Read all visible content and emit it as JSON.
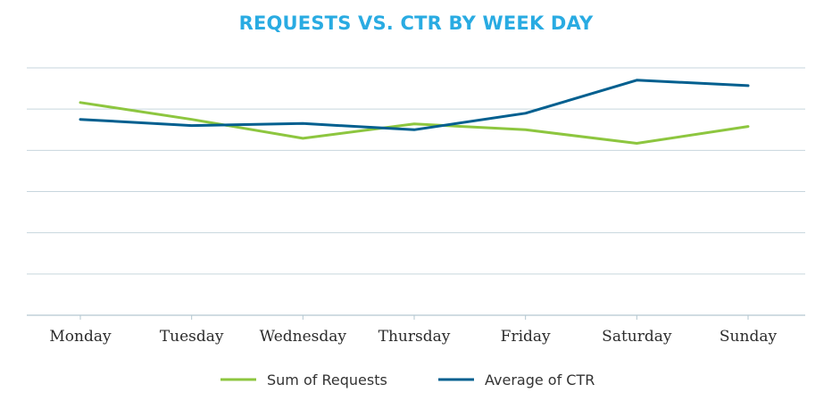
{
  "chart_data": {
    "type": "line",
    "title": "REQUESTS VS. CTR BY WEEK DAY",
    "xlabel": "",
    "ylabel": "",
    "categories": [
      "Monday",
      "Tuesday",
      "Wednesday",
      "Thursday",
      "Friday",
      "Saturday",
      "Sunday"
    ],
    "ylim": [
      0,
      6
    ],
    "grid": true,
    "y_tick_labels_shown": false,
    "legend_position": "bottom",
    "series": [
      {
        "name": "Sum of Requests",
        "color": "#8dc63f",
        "values": [
          5.16,
          4.75,
          4.29,
          4.64,
          4.5,
          4.17,
          4.58
        ]
      },
      {
        "name": "Average of CTR",
        "color": "#005f8f",
        "values": [
          4.75,
          4.6,
          4.65,
          4.5,
          4.9,
          5.7,
          5.57
        ]
      }
    ]
  }
}
